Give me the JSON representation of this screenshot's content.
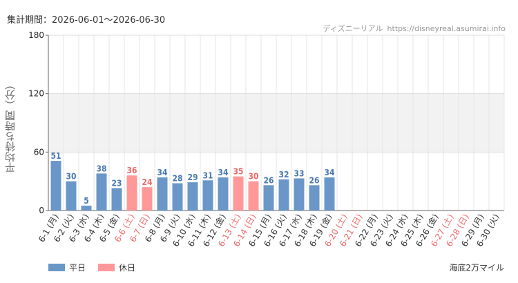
{
  "header": {
    "period_label": "集計期間：2026-06-01～2026-06-30",
    "credit_name": "ディズニーリアル",
    "credit_site": "https://disneyreal.asumirai.info"
  },
  "legend": {
    "weekday": "平日",
    "holiday": "休日"
  },
  "attraction": "海底2万マイル",
  "colors": {
    "weekday": "#6a97c8",
    "holiday": "#ff9999",
    "weekday_text": "#4a78b0",
    "holiday_text": "#ee6a6a",
    "band": "#f2f2f2"
  },
  "chart_data": {
    "type": "bar",
    "ylabel": "平均待ち時間（分）",
    "ylim": [
      0,
      180
    ],
    "yticks": [
      0,
      60,
      120,
      180
    ],
    "shaded_band": [
      60,
      120
    ],
    "grid": true,
    "categories": [
      "6-1 (月)",
      "6-2 (火)",
      "6-3 (水)",
      "6-4 (木)",
      "6-5 (金)",
      "6-6 (土)",
      "6-7 (日)",
      "6-8 (月)",
      "6-9 (火)",
      "6-10 (水)",
      "6-11 (木)",
      "6-12 (金)",
      "6-13 (土)",
      "6-14 (日)",
      "6-15 (月)",
      "6-16 (火)",
      "6-17 (水)",
      "6-18 (木)",
      "6-19 (金)",
      "6-20 (土)",
      "6-21 (日)",
      "6-22 (月)",
      "6-23 (火)",
      "6-24 (水)",
      "6-25 (木)",
      "6-26 (金)",
      "6-27 (土)",
      "6-28 (日)",
      "6-29 (月)",
      "6-30 (火)"
    ],
    "values": [
      51,
      30,
      5,
      38,
      23,
      36,
      24,
      34,
      28,
      29,
      31,
      34,
      35,
      30,
      26,
      32,
      33,
      26,
      34,
      null,
      null,
      null,
      null,
      null,
      null,
      null,
      null,
      null,
      null,
      null
    ],
    "holiday": [
      false,
      false,
      false,
      false,
      false,
      true,
      true,
      false,
      false,
      false,
      false,
      false,
      true,
      true,
      false,
      false,
      false,
      false,
      false,
      true,
      true,
      false,
      false,
      false,
      false,
      false,
      true,
      true,
      false,
      false
    ]
  }
}
